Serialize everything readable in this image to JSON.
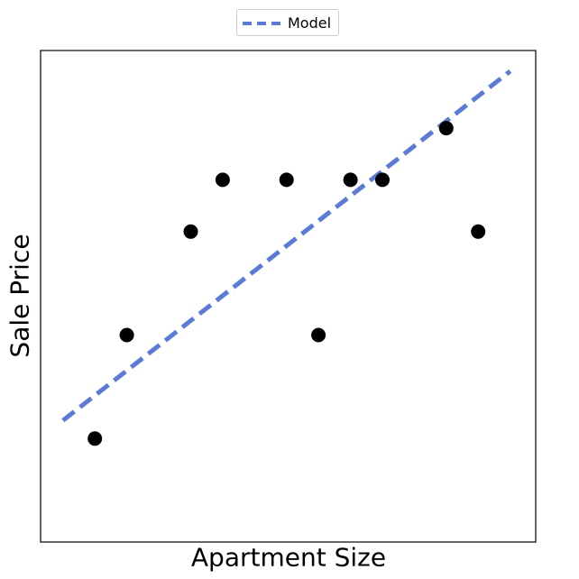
{
  "chart_data": {
    "type": "scatter",
    "title": "",
    "xlabel": "Apartment Size",
    "ylabel": "Sale Price",
    "xlim": [
      0,
      15.5
    ],
    "ylim": [
      0,
      9.5
    ],
    "grid": false,
    "legend": {
      "placement": "top-center",
      "entries": [
        "Model"
      ]
    },
    "points": {
      "x": [
        1.7,
        2.7,
        4.7,
        5.7,
        7.7,
        8.7,
        9.7,
        10.7,
        12.7,
        13.7
      ],
      "y": [
        2.0,
        4.0,
        6.0,
        7.0,
        7.0,
        4.0,
        7.0,
        7.0,
        8.0,
        6.0
      ],
      "color": "#000000"
    },
    "series": [
      {
        "name": "Model",
        "kind": "line",
        "style": "dashed",
        "color": "#5b7bd5",
        "x": [
          0.7,
          14.7
        ],
        "y": [
          2.35,
          9.1
        ]
      }
    ]
  }
}
